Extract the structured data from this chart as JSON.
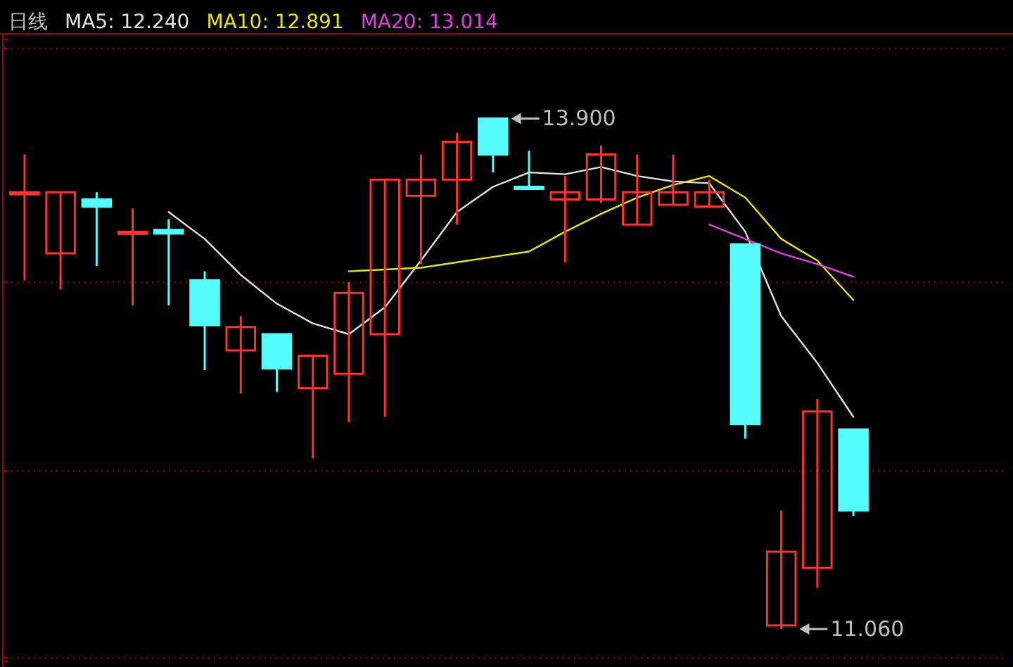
{
  "chart_data": {
    "type": "candlestick",
    "title": "日线",
    "categories": [
      null,
      null,
      null,
      null,
      null,
      null,
      null,
      null,
      null,
      null,
      null,
      null,
      null,
      null,
      null,
      null,
      null,
      null,
      null,
      null,
      null,
      null,
      null,
      null
    ],
    "ohlc": [
      [
        13.49,
        13.7,
        13.0,
        13.49
      ],
      [
        13.15,
        13.49,
        12.95,
        13.49
      ],
      [
        13.45,
        13.49,
        13.08,
        13.41
      ],
      [
        13.26,
        13.4,
        12.86,
        13.27
      ],
      [
        13.28,
        13.34,
        12.86,
        13.26
      ],
      [
        13.0,
        13.05,
        12.5,
        12.75
      ],
      [
        12.61,
        12.8,
        12.37,
        12.74
      ],
      [
        12.7,
        12.7,
        12.38,
        12.51
      ],
      [
        12.4,
        12.58,
        12.01,
        12.58
      ],
      [
        12.48,
        12.99,
        12.21,
        12.93
      ],
      [
        12.7,
        13.56,
        12.24,
        13.56
      ],
      [
        13.47,
        13.7,
        13.09,
        13.56
      ],
      [
        13.56,
        13.82,
        13.31,
        13.77
      ],
      [
        13.9,
        13.9,
        13.6,
        13.7
      ],
      [
        13.52,
        13.72,
        13.51,
        13.51
      ],
      [
        13.45,
        13.58,
        13.1,
        13.49
      ],
      [
        13.45,
        13.75,
        13.43,
        13.7
      ],
      [
        13.31,
        13.7,
        13.31,
        13.49
      ],
      [
        13.42,
        13.7,
        13.42,
        13.49
      ],
      [
        13.41,
        13.56,
        13.41,
        13.49
      ],
      [
        13.2,
        13.2,
        12.12,
        12.2
      ],
      [
        11.08,
        11.72,
        11.06,
        11.49
      ],
      [
        11.4,
        12.34,
        11.29,
        12.27
      ],
      [
        12.17,
        12.17,
        11.69,
        11.72
      ]
    ],
    "colors": [
      "#ff3232",
      "#ff3232",
      "#54fcfc",
      "#ff3232",
      "#54fcfc",
      "#54fcfc",
      "#ff3232",
      "#54fcfc",
      "#ff3232",
      "#ff3232",
      "#ff3232",
      "#ff3232",
      "#ff3232",
      "#54fcfc",
      "#54fcfc",
      "#ff3232",
      "#ff3232",
      "#ff3232",
      "#ff3232",
      "#ff3232",
      "#54fcfc",
      "#ff3232",
      "#ff3232",
      "#54fcfc"
    ],
    "series": [
      {
        "type": "line",
        "name": "MA5: 12.240",
        "color": "#e0e0e0",
        "values": [
          null,
          null,
          null,
          null,
          13.38,
          13.23,
          13.03,
          12.87,
          12.76,
          12.7,
          12.85,
          13.11,
          13.38,
          13.52,
          13.6,
          13.59,
          13.63,
          13.58,
          13.55,
          13.54,
          13.27,
          12.8,
          12.54,
          12.24
        ]
      },
      {
        "type": "line",
        "name": "MA10: 12.891",
        "color": "#e6e600",
        "values": [
          null,
          null,
          null,
          null,
          null,
          null,
          null,
          null,
          null,
          13.05,
          13.06,
          13.07,
          13.1,
          13.13,
          13.16,
          13.27,
          13.37,
          13.46,
          13.53,
          13.58,
          13.46,
          13.23,
          13.11,
          12.89
        ]
      },
      {
        "type": "line",
        "name": "MA20: 13.014",
        "color": "#e040e0",
        "values": [
          null,
          null,
          null,
          null,
          null,
          null,
          null,
          null,
          null,
          null,
          null,
          null,
          null,
          null,
          null,
          null,
          null,
          null,
          null,
          13.31,
          13.23,
          13.15,
          13.09,
          13.02
        ]
      }
    ],
    "ylim": [
      10.88,
      14.34
    ],
    "yticks": [
      {
        "value": 14.29,
        "label": null
      },
      {
        "value": 12.99,
        "label": null
      },
      {
        "value": 11.94,
        "label": null
      },
      {
        "value": 10.9,
        "label": null
      }
    ],
    "grid": "y",
    "legend": "top left",
    "annotations": [
      "13.900",
      "11.060"
    ]
  }
}
